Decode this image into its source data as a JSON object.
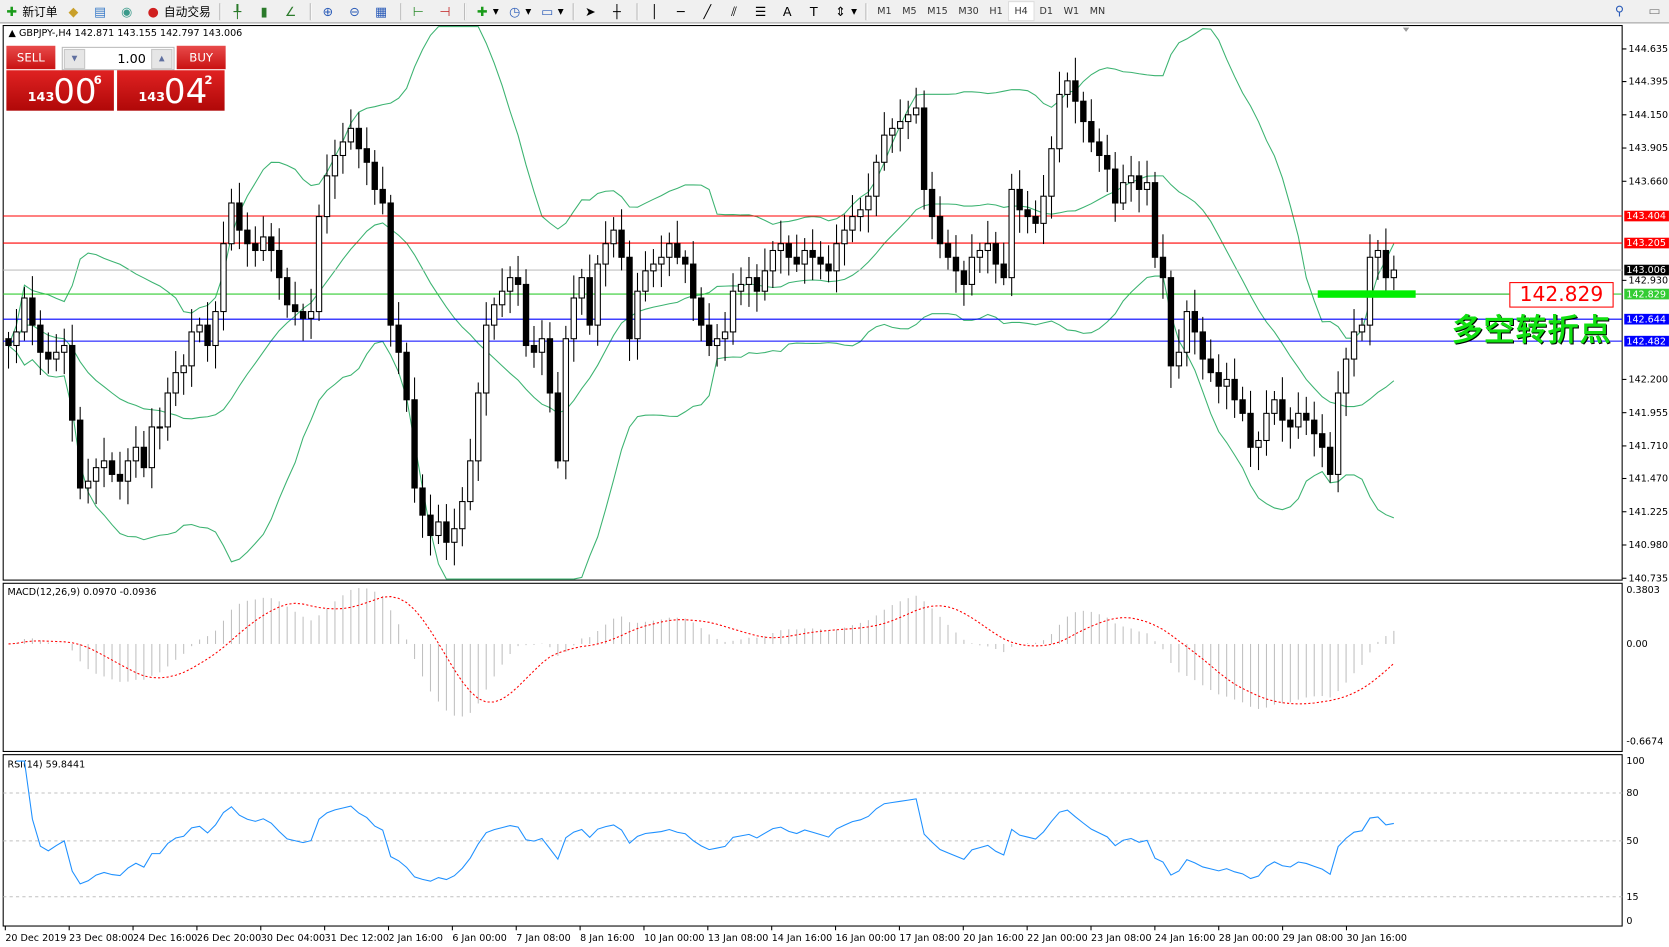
{
  "toolbar": {
    "new_order": "新订单",
    "auto_trading": "自动交易",
    "timeframes": [
      "M1",
      "M5",
      "M15",
      "M30",
      "H1",
      "H4",
      "D1",
      "W1",
      "MN"
    ],
    "active_timeframe": "H4"
  },
  "chart": {
    "symbol_header": "GBPJPY-,H4  142.871 143.155 142.797 143.006",
    "trade_panel": {
      "sell": "SELL",
      "buy": "BUY",
      "lot": "1.00",
      "sell_big": "143",
      "sell_main": "00",
      "sell_sup": "6",
      "buy_big": "143",
      "buy_main": "04",
      "buy_sup": "2"
    },
    "price_axis": [
      "144.635",
      "144.395",
      "144.150",
      "143.905",
      "143.660",
      "142.930",
      "142.200",
      "141.955",
      "141.710",
      "141.470",
      "141.225",
      "140.980",
      "140.735"
    ],
    "levels": [
      {
        "price": 143.404,
        "label": "143.404",
        "color": "#ff0000"
      },
      {
        "price": 143.205,
        "label": "143.205",
        "color": "#ff0000"
      },
      {
        "price": 143.006,
        "label": "143.006",
        "color": "#000000",
        "line": "#c0c0c0"
      },
      {
        "price": 142.829,
        "label": "142.829",
        "color": "#33cc33"
      },
      {
        "price": 142.644,
        "label": "142.644",
        "color": "#0000ff"
      },
      {
        "price": 142.482,
        "label": "142.482",
        "color": "#0000ff"
      }
    ],
    "annotation_price": "142.829",
    "annotation_text": "多空转折点",
    "closes": [
      142.45,
      142.55,
      142.8,
      142.6,
      142.4,
      142.35,
      142.4,
      142.45,
      141.9,
      141.4,
      141.45,
      141.55,
      141.6,
      141.5,
      141.45,
      141.6,
      141.7,
      141.55,
      141.85,
      141.85,
      142.1,
      142.25,
      142.3,
      142.55,
      142.6,
      142.45,
      142.7,
      143.2,
      143.5,
      143.3,
      143.2,
      143.15,
      143.25,
      143.15,
      142.95,
      142.75,
      142.7,
      142.65,
      142.7,
      143.4,
      143.7,
      143.85,
      143.95,
      144.05,
      143.9,
      143.8,
      143.6,
      143.5,
      142.6,
      142.4,
      142.05,
      141.4,
      141.2,
      141.05,
      141.15,
      141.0,
      141.1,
      141.3,
      141.6,
      142.1,
      142.6,
      142.75,
      142.85,
      142.95,
      142.9,
      142.45,
      142.4,
      142.5,
      142.1,
      141.6,
      142.5,
      142.8,
      142.95,
      142.6,
      143.05,
      143.2,
      143.3,
      143.1,
      142.5,
      142.85,
      143.0,
      143.05,
      143.1,
      143.2,
      143.1,
      143.05,
      142.8,
      142.6,
      142.45,
      142.5,
      142.55,
      142.85,
      142.9,
      142.95,
      142.85,
      143.0,
      143.15,
      143.2,
      143.1,
      143.05,
      143.15,
      143.1,
      143.05,
      143.0,
      143.2,
      143.3,
      143.4,
      143.45,
      143.55,
      143.8,
      144.0,
      144.05,
      144.1,
      144.15,
      144.2,
      143.6,
      143.4,
      143.2,
      143.1,
      143.0,
      142.9,
      143.1,
      143.15,
      143.2,
      143.05,
      142.95,
      143.6,
      143.45,
      143.4,
      143.35,
      143.55,
      143.9,
      144.3,
      144.4,
      144.25,
      144.1,
      143.95,
      143.85,
      143.75,
      143.5,
      143.65,
      143.7,
      143.6,
      143.65,
      143.1,
      142.95,
      142.3,
      142.4,
      142.7,
      142.55,
      142.35,
      142.25,
      142.15,
      142.2,
      142.05,
      141.95,
      141.7,
      141.75,
      141.95,
      142.05,
      141.9,
      141.85,
      141.95,
      141.9,
      141.8,
      141.7,
      141.5,
      142.1,
      142.35,
      142.55,
      142.6,
      143.1,
      143.15,
      142.95,
      143.006
    ]
  },
  "macd": {
    "label": "MACD(12,26,9) 0.0970 -0.0936",
    "axis": [
      "0.3803",
      "0.00",
      "-0.6674"
    ],
    "hist_color": "#c0c0c0",
    "signal_color": "#ff0000"
  },
  "rsi": {
    "label": "RSI(14) 59.8441",
    "axis": [
      "100",
      "80",
      "50",
      "15",
      "0"
    ],
    "line_color": "#1e90ff"
  },
  "bands_color": "#3cb371",
  "time_axis": [
    "20 Dec 2019",
    "23 Dec 08:00",
    "24 Dec 16:00",
    "26 Dec 20:00",
    "30 Dec 04:00",
    "31 Dec 12:00",
    "2 Jan 16:00",
    "6 Jan 00:00",
    "7 Jan 08:00",
    "8 Jan 16:00",
    "10 Jan 00:00",
    "13 Jan 08:00",
    "14 Jan 16:00",
    "16 Jan 00:00",
    "17 Jan 08:00",
    "20 Jan 16:00",
    "22 Jan 00:00",
    "23 Jan 08:00",
    "24 Jan 16:00",
    "28 Jan 00:00",
    "29 Jan 08:00",
    "30 Jan 16:00"
  ]
}
